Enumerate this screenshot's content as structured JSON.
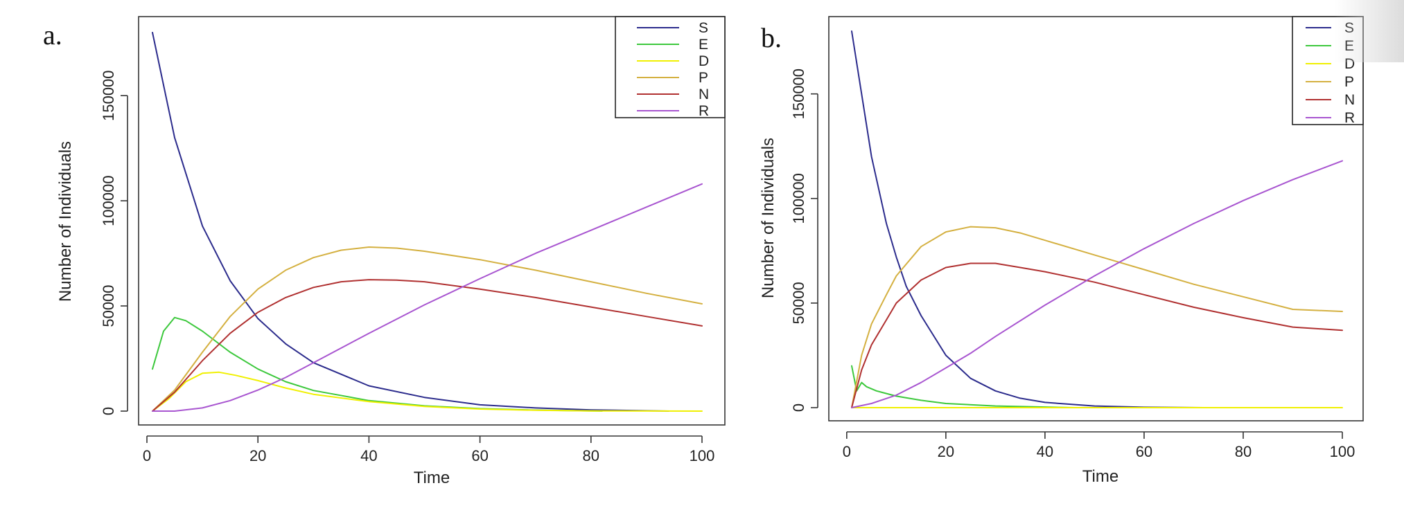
{
  "chart_data": [
    {
      "panel_label": "a.",
      "type": "line",
      "xlabel": "Time",
      "ylabel": "Number of Individuals",
      "xlim": [
        1,
        100
      ],
      "ylim": [
        0,
        180000
      ],
      "xticks": [
        0,
        20,
        40,
        60,
        80,
        100
      ],
      "yticks": [
        0,
        50000,
        100000,
        150000
      ],
      "legend_position": "top-right",
      "series": [
        {
          "name": "S",
          "color": "#2b2b8c",
          "x": [
            1,
            5,
            10,
            15,
            20,
            25,
            30,
            40,
            50,
            60,
            70,
            80,
            94
          ],
          "y": [
            180000,
            130000,
            88000,
            62000,
            44000,
            32000,
            23000,
            12000,
            6500,
            3000,
            1500,
            600,
            0
          ]
        },
        {
          "name": "E",
          "color": "#3cc83c",
          "x": [
            1,
            3,
            5,
            7,
            10,
            15,
            20,
            25,
            30,
            40,
            50,
            60,
            70,
            82
          ],
          "y": [
            20000,
            38000,
            44500,
            43000,
            38000,
            28000,
            20000,
            14000,
            9800,
            5000,
            2500,
            1200,
            500,
            0
          ]
        },
        {
          "name": "D",
          "color": "#f0f000",
          "x": [
            1,
            4,
            7,
            10,
            13,
            16,
            20,
            25,
            30,
            40,
            50,
            60,
            70,
            80,
            100
          ],
          "y": [
            0,
            6000,
            14000,
            18000,
            18500,
            17000,
            14500,
            11000,
            8000,
            4500,
            2200,
            1000,
            400,
            100,
            0
          ]
        },
        {
          "name": "P",
          "color": "#d4b040",
          "x": [
            1,
            5,
            10,
            15,
            20,
            25,
            30,
            35,
            40,
            45,
            50,
            60,
            70,
            80,
            90,
            100
          ],
          "y": [
            0,
            10000,
            28000,
            45000,
            58000,
            67000,
            73000,
            76500,
            78000,
            77500,
            76000,
            72000,
            67000,
            61500,
            56000,
            51000
          ]
        },
        {
          "name": "N",
          "color": "#b03030",
          "x": [
            1,
            5,
            10,
            15,
            20,
            25,
            30,
            35,
            40,
            45,
            50,
            60,
            70,
            80,
            90,
            100
          ],
          "y": [
            0,
            9000,
            24000,
            37000,
            47000,
            54000,
            58800,
            61500,
            62500,
            62300,
            61500,
            58000,
            54000,
            49500,
            45000,
            40500
          ]
        },
        {
          "name": "R",
          "color": "#a855d0",
          "x": [
            1,
            5,
            10,
            15,
            20,
            25,
            30,
            40,
            50,
            60,
            70,
            80,
            90,
            100
          ],
          "y": [
            0,
            0,
            1500,
            5000,
            10000,
            16000,
            23000,
            37000,
            50500,
            63000,
            75000,
            86000,
            97000,
            108000
          ]
        }
      ]
    },
    {
      "panel_label": "b.",
      "type": "line",
      "xlabel": "Time",
      "ylabel": "Number of Individuals",
      "xlim": [
        1,
        100
      ],
      "ylim": [
        0,
        180000
      ],
      "xticks": [
        0,
        20,
        40,
        60,
        80,
        100
      ],
      "yticks": [
        0,
        50000,
        100000,
        150000
      ],
      "legend_position": "top-right",
      "series": [
        {
          "name": "S",
          "color": "#2b2b8c",
          "x": [
            1,
            3,
            5,
            8,
            10,
            12,
            15,
            20,
            25,
            30,
            35,
            40,
            50,
            60,
            72
          ],
          "y": [
            180000,
            150000,
            120000,
            88000,
            72000,
            58000,
            44000,
            25000,
            14000,
            8000,
            4500,
            2500,
            800,
            200,
            0
          ]
        },
        {
          "name": "E",
          "color": "#3cc83c",
          "x": [
            1,
            2,
            3,
            4,
            6,
            10,
            15,
            20,
            30,
            40,
            46
          ],
          "y": [
            20000,
            8000,
            12000,
            10000,
            8000,
            5500,
            3500,
            2000,
            800,
            300,
            0
          ]
        },
        {
          "name": "D",
          "color": "#f0f000",
          "x": [
            1,
            100
          ],
          "y": [
            0,
            0
          ]
        },
        {
          "name": "P",
          "color": "#d4b040",
          "x": [
            1,
            3,
            5,
            8,
            10,
            15,
            20,
            25,
            30,
            35,
            40,
            50,
            60,
            70,
            80,
            90,
            100
          ],
          "y": [
            0,
            25000,
            40000,
            54000,
            63000,
            77000,
            84000,
            86500,
            86000,
            83500,
            80000,
            73000,
            66000,
            59000,
            53000,
            47000,
            46000
          ]
        },
        {
          "name": "N",
          "color": "#b03030",
          "x": [
            1,
            3,
            5,
            8,
            10,
            15,
            20,
            25,
            30,
            35,
            40,
            50,
            60,
            70,
            80,
            90,
            100
          ],
          "y": [
            0,
            18000,
            30000,
            42000,
            50000,
            61000,
            67000,
            69000,
            69000,
            67000,
            65000,
            60000,
            54000,
            48000,
            43000,
            38500,
            37000
          ]
        },
        {
          "name": "R",
          "color": "#a855d0",
          "x": [
            1,
            5,
            10,
            15,
            20,
            25,
            30,
            40,
            50,
            60,
            70,
            80,
            90,
            100
          ],
          "y": [
            0,
            2000,
            6000,
            12000,
            19000,
            26000,
            34000,
            49000,
            63000,
            76000,
            88000,
            99000,
            109000,
            118000
          ]
        }
      ]
    }
  ]
}
